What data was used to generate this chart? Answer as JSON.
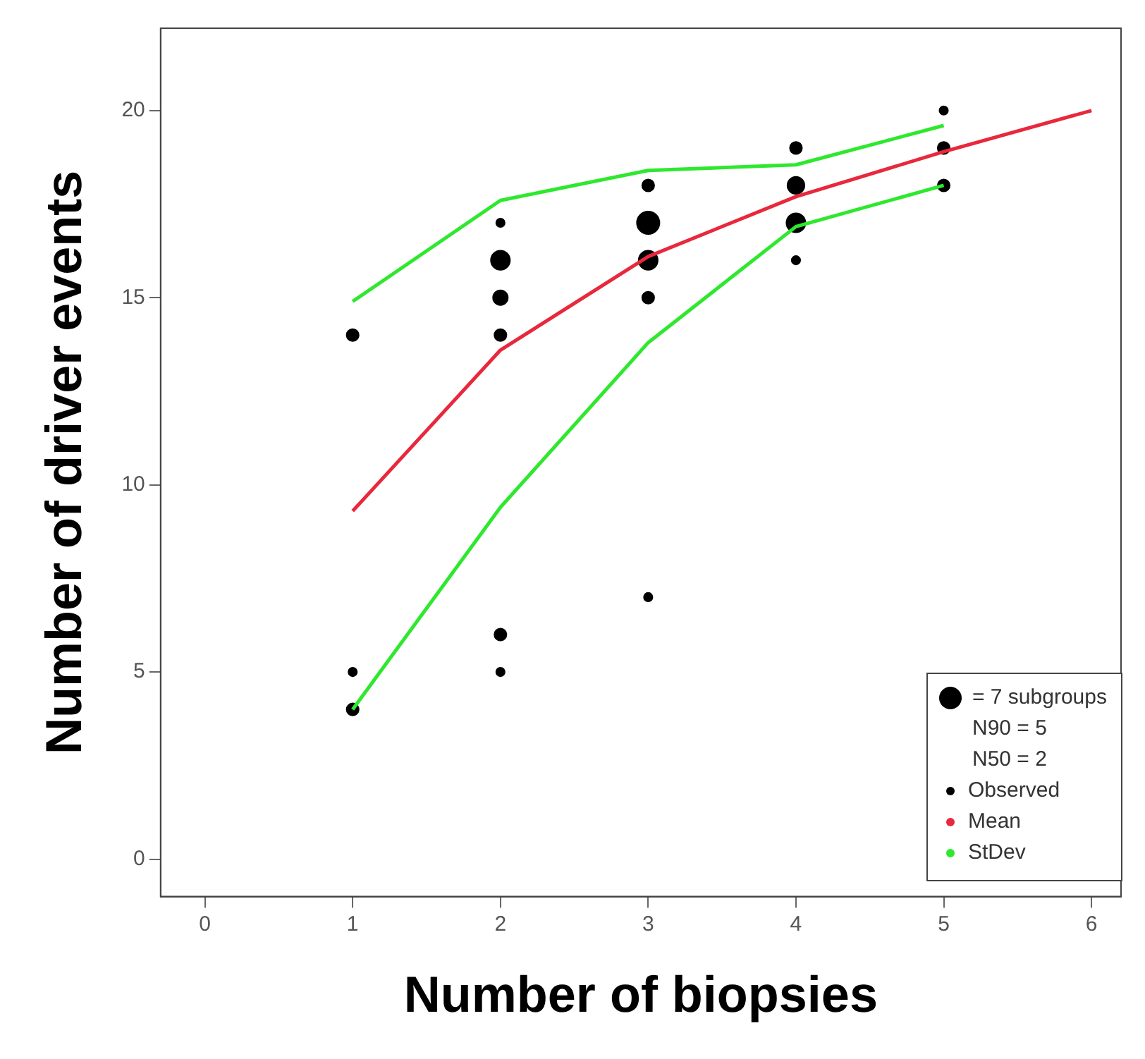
{
  "chart_data": {
    "type": "line",
    "xlabel": "Number of biopsies",
    "ylabel": "Number of driver events",
    "xlim": [
      -0.3,
      6.2
    ],
    "xticks": [
      0,
      1,
      2,
      3,
      4,
      5,
      6
    ],
    "ylim": [
      -1,
      22.2
    ],
    "yticks": [
      0,
      5,
      10,
      15,
      20
    ],
    "grid": false,
    "legend": "bottom right",
    "line_style": "solid",
    "size_legend": [
      {
        "value": 7,
        "label": "= 7 subgroups"
      }
    ],
    "annotations": [
      "N90 = 5",
      "N50 = 2"
    ],
    "series": [
      {
        "name": "Observed",
        "type": "bubble",
        "color": "#000000",
        "x": [
          1,
          1,
          1,
          2,
          2,
          2,
          2,
          2,
          2,
          3,
          3,
          3,
          3,
          3,
          4,
          4,
          4,
          4,
          5,
          5,
          5
        ],
        "values": [
          14,
          5,
          4,
          17,
          16,
          15,
          14,
          6,
          5,
          18,
          17,
          16,
          15,
          7,
          19,
          18,
          17,
          16,
          20,
          19,
          18
        ],
        "sizes": [
          2,
          1,
          2,
          1,
          5,
          3,
          2,
          2,
          1,
          2,
          7,
          5,
          2,
          1,
          2,
          4,
          5,
          1,
          1,
          2,
          2
        ]
      },
      {
        "name": "Mean",
        "marker": "none",
        "color": "#e8283c",
        "x": [
          1,
          2,
          3,
          4,
          5,
          6
        ],
        "values": [
          9.3,
          13.6,
          16.1,
          17.7,
          18.9,
          20
        ]
      },
      {
        "name": "StDev",
        "marker": "none",
        "color": "#2ee82e",
        "x": [
          1,
          2,
          3,
          4,
          5
        ],
        "values": [
          14.9,
          17.6,
          18.4,
          18.55,
          19.6
        ]
      },
      {
        "marker": "none",
        "color": "#2ee82e",
        "x": [
          1,
          2,
          3,
          4,
          5
        ],
        "values": [
          4,
          9.4,
          13.8,
          16.9,
          18
        ]
      }
    ]
  }
}
